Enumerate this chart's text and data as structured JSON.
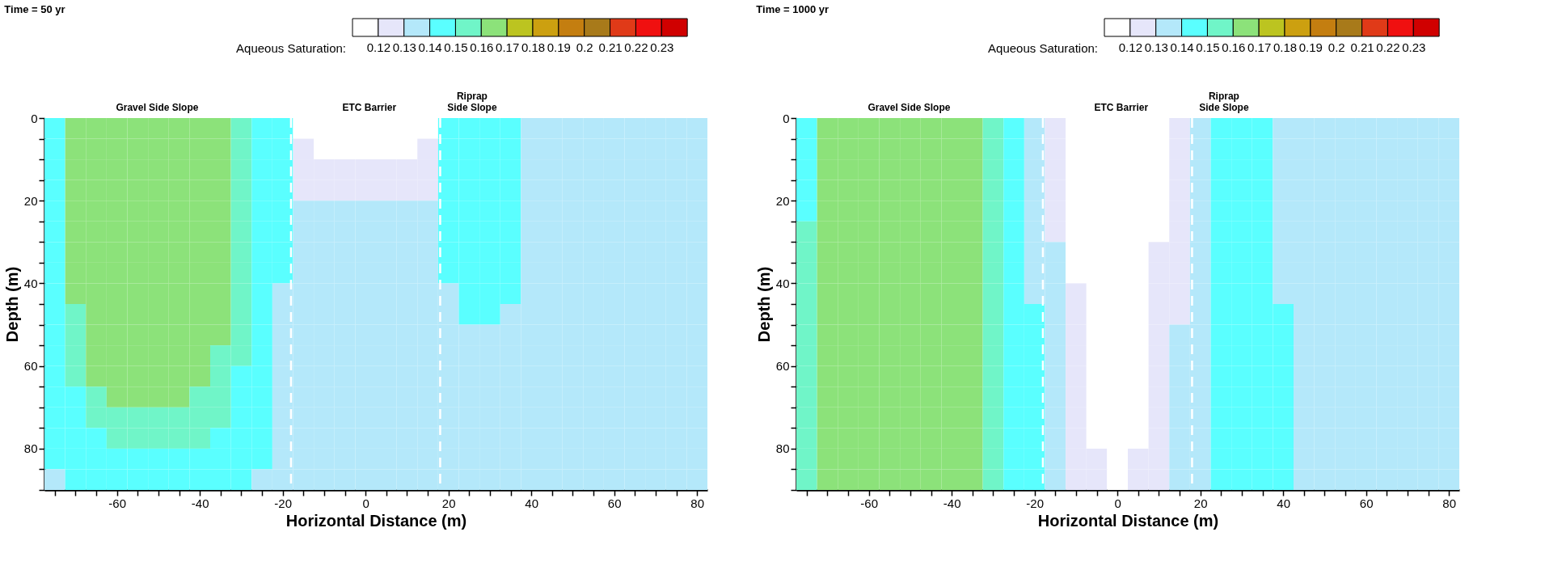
{
  "chart_data": [
    {
      "type": "heatmap",
      "title": "Time = 50 yr",
      "clabel": "Aqueous Saturation:",
      "xlabel": "Horizontal Distance (m)",
      "ylabel": "Depth (m)",
      "xlim": [
        -77.5,
        82.5
      ],
      "ylim": [
        90,
        0
      ],
      "xticks": [
        {
          "value": -75,
          "label": null
        },
        {
          "value": -70,
          "label": null
        },
        {
          "value": -65,
          "label": null
        },
        -60,
        {
          "value": -55,
          "label": null
        },
        {
          "value": -50,
          "label": null
        },
        {
          "value": -45,
          "label": null
        },
        -40,
        {
          "value": -35,
          "label": null
        },
        {
          "value": -30,
          "label": null
        },
        {
          "value": -25,
          "label": null
        },
        -20,
        {
          "value": -15,
          "label": null
        },
        {
          "value": -10,
          "label": null
        },
        {
          "value": -5,
          "label": null
        },
        0,
        {
          "value": 5,
          "label": null
        },
        {
          "value": 10,
          "label": null
        },
        {
          "value": 15,
          "label": null
        },
        20,
        {
          "value": 25,
          "label": null
        },
        {
          "value": 30,
          "label": null
        },
        {
          "value": 35,
          "label": null
        },
        40,
        {
          "value": 45,
          "label": null
        },
        {
          "value": 50,
          "label": null
        },
        {
          "value": 55,
          "label": null
        },
        60,
        {
          "value": 65,
          "label": null
        },
        {
          "value": 70,
          "label": null
        },
        {
          "value": 75,
          "label": null
        },
        80
      ],
      "yticks": [
        0,
        {
          "value": 5,
          "label": null
        },
        {
          "value": 10,
          "label": null
        },
        {
          "value": 15,
          "label": null
        },
        20,
        {
          "value": 25,
          "label": null
        },
        {
          "value": 30,
          "label": null
        },
        {
          "value": 35,
          "label": null
        },
        40,
        {
          "value": 45,
          "label": null
        },
        {
          "value": 50,
          "label": null
        },
        {
          "value": 55,
          "label": null
        },
        60,
        {
          "value": 65,
          "label": null
        },
        {
          "value": 70,
          "label": null
        },
        {
          "value": 75,
          "label": null
        },
        80,
        {
          "value": 85,
          "label": null
        },
        {
          "value": 90,
          "label": null
        }
      ],
      "clim": [
        0.11,
        0.24
      ],
      "cticks": [
        0.12,
        0.13,
        0.14,
        0.15,
        0.16,
        0.17,
        0.18,
        0.19,
        0.2,
        0.21,
        0.22,
        0.23
      ],
      "colors": [
        "#ffffff",
        "#e6e6fa",
        "#b4e8fa",
        "#5affff",
        "#70f5c8",
        "#8ce27a",
        "#bcc420",
        "#cca010",
        "#c47e10",
        "#a87a1a",
        "#e03a18",
        "#f01010",
        "#d00000"
      ],
      "grid": false,
      "ref_lines": [
        {
          "axis": "x",
          "value": -18,
          "color": "#ffffff",
          "line_style": "dashed"
        },
        {
          "axis": "x",
          "value": 18,
          "color": "#ffffff",
          "line_style": "dashed"
        }
      ],
      "annotations": [
        "Gravel Side Slope",
        "ETC Barrier",
        "Riprap\nSide Slope"
      ],
      "cells": [
        [
          0.145,
          0.165,
          0.165,
          0.165,
          0.165,
          0.165,
          0.165,
          0.165,
          0.165,
          0.155,
          0.145,
          0.145,
          0.115,
          0.115,
          0.115,
          0.115,
          0.115,
          0.115,
          0.115,
          0.145,
          0.145,
          0.145,
          0.145,
          0.135,
          0.135,
          0.135,
          0.135,
          0.135,
          0.135,
          0.135,
          0.135,
          0.135
        ],
        [
          0.145,
          0.165,
          0.165,
          0.165,
          0.165,
          0.165,
          0.165,
          0.165,
          0.165,
          0.155,
          0.145,
          0.145,
          0.125,
          0.115,
          0.115,
          0.115,
          0.115,
          0.115,
          0.125,
          0.145,
          0.145,
          0.145,
          0.145,
          0.135,
          0.135,
          0.135,
          0.135,
          0.135,
          0.135,
          0.135,
          0.135,
          0.135
        ],
        [
          0.145,
          0.165,
          0.165,
          0.165,
          0.165,
          0.165,
          0.165,
          0.165,
          0.165,
          0.155,
          0.145,
          0.145,
          0.125,
          0.125,
          0.125,
          0.125,
          0.125,
          0.125,
          0.125,
          0.145,
          0.145,
          0.145,
          0.145,
          0.135,
          0.135,
          0.135,
          0.135,
          0.135,
          0.135,
          0.135,
          0.135,
          0.135
        ],
        [
          0.145,
          0.165,
          0.165,
          0.165,
          0.165,
          0.165,
          0.165,
          0.165,
          0.165,
          0.155,
          0.145,
          0.145,
          0.125,
          0.125,
          0.125,
          0.125,
          0.125,
          0.125,
          0.125,
          0.145,
          0.145,
          0.145,
          0.145,
          0.135,
          0.135,
          0.135,
          0.135,
          0.135,
          0.135,
          0.135,
          0.135,
          0.135
        ],
        [
          0.145,
          0.165,
          0.165,
          0.165,
          0.165,
          0.165,
          0.165,
          0.165,
          0.165,
          0.155,
          0.145,
          0.145,
          0.135,
          0.135,
          0.135,
          0.135,
          0.135,
          0.135,
          0.135,
          0.145,
          0.145,
          0.145,
          0.145,
          0.135,
          0.135,
          0.135,
          0.135,
          0.135,
          0.135,
          0.135,
          0.135,
          0.135
        ],
        [
          0.145,
          0.165,
          0.165,
          0.165,
          0.165,
          0.165,
          0.165,
          0.165,
          0.165,
          0.155,
          0.145,
          0.145,
          0.135,
          0.135,
          0.135,
          0.135,
          0.135,
          0.135,
          0.135,
          0.145,
          0.145,
          0.145,
          0.145,
          0.135,
          0.135,
          0.135,
          0.135,
          0.135,
          0.135,
          0.135,
          0.135,
          0.135
        ],
        [
          0.145,
          0.165,
          0.165,
          0.165,
          0.165,
          0.165,
          0.165,
          0.165,
          0.165,
          0.155,
          0.145,
          0.145,
          0.135,
          0.135,
          0.135,
          0.135,
          0.135,
          0.135,
          0.135,
          0.145,
          0.145,
          0.145,
          0.145,
          0.135,
          0.135,
          0.135,
          0.135,
          0.135,
          0.135,
          0.135,
          0.135,
          0.135
        ],
        [
          0.145,
          0.165,
          0.165,
          0.165,
          0.165,
          0.165,
          0.165,
          0.165,
          0.165,
          0.155,
          0.145,
          0.145,
          0.135,
          0.135,
          0.135,
          0.135,
          0.135,
          0.135,
          0.135,
          0.145,
          0.145,
          0.145,
          0.145,
          0.135,
          0.135,
          0.135,
          0.135,
          0.135,
          0.135,
          0.135,
          0.135,
          0.135
        ],
        [
          0.145,
          0.165,
          0.165,
          0.165,
          0.165,
          0.165,
          0.165,
          0.165,
          0.165,
          0.155,
          0.145,
          0.135,
          0.135,
          0.135,
          0.135,
          0.135,
          0.135,
          0.135,
          0.135,
          0.135,
          0.145,
          0.145,
          0.145,
          0.135,
          0.135,
          0.135,
          0.135,
          0.135,
          0.135,
          0.135,
          0.135,
          0.135
        ],
        [
          0.145,
          0.155,
          0.165,
          0.165,
          0.165,
          0.165,
          0.165,
          0.165,
          0.165,
          0.155,
          0.145,
          0.135,
          0.135,
          0.135,
          0.135,
          0.135,
          0.135,
          0.135,
          0.135,
          0.135,
          0.145,
          0.145,
          0.135,
          0.135,
          0.135,
          0.135,
          0.135,
          0.135,
          0.135,
          0.135,
          0.135,
          0.135
        ],
        [
          0.145,
          0.155,
          0.165,
          0.165,
          0.165,
          0.165,
          0.165,
          0.165,
          0.165,
          0.155,
          0.145,
          0.135,
          0.135,
          0.135,
          0.135,
          0.135,
          0.135,
          0.135,
          0.135,
          0.135,
          0.135,
          0.135,
          0.135,
          0.135,
          0.135,
          0.135,
          0.135,
          0.135,
          0.135,
          0.135,
          0.135,
          0.135
        ],
        [
          0.145,
          0.155,
          0.165,
          0.165,
          0.165,
          0.165,
          0.165,
          0.165,
          0.155,
          0.155,
          0.145,
          0.135,
          0.135,
          0.135,
          0.135,
          0.135,
          0.135,
          0.135,
          0.135,
          0.135,
          0.135,
          0.135,
          0.135,
          0.135,
          0.135,
          0.135,
          0.135,
          0.135,
          0.135,
          0.135,
          0.135,
          0.135
        ],
        [
          0.145,
          0.155,
          0.165,
          0.165,
          0.165,
          0.165,
          0.165,
          0.165,
          0.155,
          0.145,
          0.145,
          0.135,
          0.135,
          0.135,
          0.135,
          0.135,
          0.135,
          0.135,
          0.135,
          0.135,
          0.135,
          0.135,
          0.135,
          0.135,
          0.135,
          0.135,
          0.135,
          0.135,
          0.135,
          0.135,
          0.135,
          0.135
        ],
        [
          0.145,
          0.145,
          0.155,
          0.165,
          0.165,
          0.165,
          0.165,
          0.155,
          0.155,
          0.145,
          0.145,
          0.135,
          0.135,
          0.135,
          0.135,
          0.135,
          0.135,
          0.135,
          0.135,
          0.135,
          0.135,
          0.135,
          0.135,
          0.135,
          0.135,
          0.135,
          0.135,
          0.135,
          0.135,
          0.135,
          0.135,
          0.135
        ],
        [
          0.145,
          0.145,
          0.155,
          0.155,
          0.155,
          0.155,
          0.155,
          0.155,
          0.155,
          0.145,
          0.145,
          0.135,
          0.135,
          0.135,
          0.135,
          0.135,
          0.135,
          0.135,
          0.135,
          0.135,
          0.135,
          0.135,
          0.135,
          0.135,
          0.135,
          0.135,
          0.135,
          0.135,
          0.135,
          0.135,
          0.135,
          0.135
        ],
        [
          0.145,
          0.145,
          0.145,
          0.155,
          0.155,
          0.155,
          0.155,
          0.155,
          0.145,
          0.145,
          0.145,
          0.135,
          0.135,
          0.135,
          0.135,
          0.135,
          0.135,
          0.135,
          0.135,
          0.135,
          0.135,
          0.135,
          0.135,
          0.135,
          0.135,
          0.135,
          0.135,
          0.135,
          0.135,
          0.135,
          0.135,
          0.135
        ],
        [
          0.145,
          0.145,
          0.145,
          0.145,
          0.145,
          0.145,
          0.145,
          0.145,
          0.145,
          0.145,
          0.145,
          0.135,
          0.135,
          0.135,
          0.135,
          0.135,
          0.135,
          0.135,
          0.135,
          0.135,
          0.135,
          0.135,
          0.135,
          0.135,
          0.135,
          0.135,
          0.135,
          0.135,
          0.135,
          0.135,
          0.135,
          0.135
        ],
        [
          0.135,
          0.145,
          0.145,
          0.145,
          0.145,
          0.145,
          0.145,
          0.145,
          0.145,
          0.145,
          0.135,
          0.135,
          0.135,
          0.135,
          0.135,
          0.135,
          0.135,
          0.135,
          0.135,
          0.135,
          0.135,
          0.135,
          0.135,
          0.135,
          0.135,
          0.135,
          0.135,
          0.135,
          0.135,
          0.135,
          0.135,
          0.135
        ]
      ]
    },
    {
      "type": "heatmap",
      "title": "Time = 1000 yr",
      "clabel": "Aqueous Saturation:",
      "xlabel": "Horizontal Distance (m)",
      "ylabel": "Depth (m)",
      "xlim": [
        -77.5,
        82.5
      ],
      "ylim": [
        90,
        0
      ],
      "xticks": [
        {
          "value": -75,
          "label": null
        },
        {
          "value": -70,
          "label": null
        },
        {
          "value": -65,
          "label": null
        },
        -60,
        {
          "value": -55,
          "label": null
        },
        {
          "value": -50,
          "label": null
        },
        {
          "value": -45,
          "label": null
        },
        -40,
        {
          "value": -35,
          "label": null
        },
        {
          "value": -30,
          "label": null
        },
        {
          "value": -25,
          "label": null
        },
        -20,
        {
          "value": -15,
          "label": null
        },
        {
          "value": -10,
          "label": null
        },
        {
          "value": -5,
          "label": null
        },
        0,
        {
          "value": 5,
          "label": null
        },
        {
          "value": 10,
          "label": null
        },
        {
          "value": 15,
          "label": null
        },
        20,
        {
          "value": 25,
          "label": null
        },
        {
          "value": 30,
          "label": null
        },
        {
          "value": 35,
          "label": null
        },
        40,
        {
          "value": 45,
          "label": null
        },
        {
          "value": 50,
          "label": null
        },
        {
          "value": 55,
          "label": null
        },
        60,
        {
          "value": 65,
          "label": null
        },
        {
          "value": 70,
          "label": null
        },
        {
          "value": 75,
          "label": null
        },
        80
      ],
      "yticks": [
        0,
        {
          "value": 5,
          "label": null
        },
        {
          "value": 10,
          "label": null
        },
        {
          "value": 15,
          "label": null
        },
        20,
        {
          "value": 25,
          "label": null
        },
        {
          "value": 30,
          "label": null
        },
        {
          "value": 35,
          "label": null
        },
        40,
        {
          "value": 45,
          "label": null
        },
        {
          "value": 50,
          "label": null
        },
        {
          "value": 55,
          "label": null
        },
        60,
        {
          "value": 65,
          "label": null
        },
        {
          "value": 70,
          "label": null
        },
        {
          "value": 75,
          "label": null
        },
        80,
        {
          "value": 85,
          "label": null
        },
        {
          "value": 90,
          "label": null
        }
      ],
      "clim": [
        0.11,
        0.24
      ],
      "cticks": [
        0.12,
        0.13,
        0.14,
        0.15,
        0.16,
        0.17,
        0.18,
        0.19,
        0.2,
        0.21,
        0.22,
        0.23
      ],
      "colors": [
        "#ffffff",
        "#e6e6fa",
        "#b4e8fa",
        "#5affff",
        "#70f5c8",
        "#8ce27a",
        "#bcc420",
        "#cca010",
        "#c47e10",
        "#a87a1a",
        "#e03a18",
        "#f01010",
        "#d00000"
      ],
      "grid": false,
      "ref_lines": [
        {
          "axis": "x",
          "value": -18,
          "color": "#ffffff",
          "line_style": "dashed"
        },
        {
          "axis": "x",
          "value": 18,
          "color": "#ffffff",
          "line_style": "dashed"
        }
      ],
      "annotations": [
        "Gravel Side Slope",
        "ETC Barrier",
        "Riprap\nSide Slope"
      ],
      "cells": [
        [
          0.145,
          0.165,
          0.165,
          0.165,
          0.165,
          0.165,
          0.165,
          0.165,
          0.165,
          0.155,
          0.145,
          0.135,
          0.125,
          0.115,
          0.115,
          0.115,
          0.115,
          0.115,
          0.125,
          0.135,
          0.145,
          0.145,
          0.145,
          0.135,
          0.135,
          0.135,
          0.135,
          0.135,
          0.135,
          0.135,
          0.135,
          0.135
        ],
        [
          0.145,
          0.165,
          0.165,
          0.165,
          0.165,
          0.165,
          0.165,
          0.165,
          0.165,
          0.155,
          0.145,
          0.135,
          0.125,
          0.115,
          0.115,
          0.115,
          0.115,
          0.115,
          0.125,
          0.135,
          0.145,
          0.145,
          0.145,
          0.135,
          0.135,
          0.135,
          0.135,
          0.135,
          0.135,
          0.135,
          0.135,
          0.135
        ],
        [
          0.145,
          0.165,
          0.165,
          0.165,
          0.165,
          0.165,
          0.165,
          0.165,
          0.165,
          0.155,
          0.145,
          0.135,
          0.125,
          0.115,
          0.115,
          0.115,
          0.115,
          0.115,
          0.125,
          0.135,
          0.145,
          0.145,
          0.145,
          0.135,
          0.135,
          0.135,
          0.135,
          0.135,
          0.135,
          0.135,
          0.135,
          0.135
        ],
        [
          0.145,
          0.165,
          0.165,
          0.165,
          0.165,
          0.165,
          0.165,
          0.165,
          0.165,
          0.155,
          0.145,
          0.135,
          0.125,
          0.115,
          0.115,
          0.115,
          0.115,
          0.115,
          0.125,
          0.135,
          0.145,
          0.145,
          0.145,
          0.135,
          0.135,
          0.135,
          0.135,
          0.135,
          0.135,
          0.135,
          0.135,
          0.135
        ],
        [
          0.145,
          0.165,
          0.165,
          0.165,
          0.165,
          0.165,
          0.165,
          0.165,
          0.165,
          0.155,
          0.145,
          0.135,
          0.125,
          0.115,
          0.115,
          0.115,
          0.115,
          0.115,
          0.125,
          0.135,
          0.145,
          0.145,
          0.145,
          0.135,
          0.135,
          0.135,
          0.135,
          0.135,
          0.135,
          0.135,
          0.135,
          0.135
        ],
        [
          0.155,
          0.165,
          0.165,
          0.165,
          0.165,
          0.165,
          0.165,
          0.165,
          0.165,
          0.155,
          0.145,
          0.135,
          0.125,
          0.115,
          0.115,
          0.115,
          0.115,
          0.115,
          0.125,
          0.135,
          0.145,
          0.145,
          0.145,
          0.135,
          0.135,
          0.135,
          0.135,
          0.135,
          0.135,
          0.135,
          0.135,
          0.135
        ],
        [
          0.155,
          0.165,
          0.165,
          0.165,
          0.165,
          0.165,
          0.165,
          0.165,
          0.165,
          0.155,
          0.145,
          0.135,
          0.135,
          0.115,
          0.115,
          0.115,
          0.115,
          0.125,
          0.125,
          0.135,
          0.145,
          0.145,
          0.145,
          0.135,
          0.135,
          0.135,
          0.135,
          0.135,
          0.135,
          0.135,
          0.135,
          0.135
        ],
        [
          0.155,
          0.165,
          0.165,
          0.165,
          0.165,
          0.165,
          0.165,
          0.165,
          0.165,
          0.155,
          0.145,
          0.135,
          0.135,
          0.115,
          0.115,
          0.115,
          0.115,
          0.125,
          0.125,
          0.135,
          0.145,
          0.145,
          0.145,
          0.135,
          0.135,
          0.135,
          0.135,
          0.135,
          0.135,
          0.135,
          0.135,
          0.135
        ],
        [
          0.155,
          0.165,
          0.165,
          0.165,
          0.165,
          0.165,
          0.165,
          0.165,
          0.165,
          0.155,
          0.145,
          0.135,
          0.135,
          0.125,
          0.115,
          0.115,
          0.115,
          0.125,
          0.125,
          0.135,
          0.145,
          0.145,
          0.145,
          0.135,
          0.135,
          0.135,
          0.135,
          0.135,
          0.135,
          0.135,
          0.135,
          0.135
        ],
        [
          0.155,
          0.165,
          0.165,
          0.165,
          0.165,
          0.165,
          0.165,
          0.165,
          0.165,
          0.155,
          0.145,
          0.145,
          0.135,
          0.125,
          0.115,
          0.115,
          0.115,
          0.125,
          0.125,
          0.135,
          0.145,
          0.145,
          0.145,
          0.145,
          0.135,
          0.135,
          0.135,
          0.135,
          0.135,
          0.135,
          0.135,
          0.135
        ],
        [
          0.155,
          0.165,
          0.165,
          0.165,
          0.165,
          0.165,
          0.165,
          0.165,
          0.165,
          0.155,
          0.145,
          0.145,
          0.135,
          0.125,
          0.115,
          0.115,
          0.115,
          0.125,
          0.135,
          0.135,
          0.145,
          0.145,
          0.145,
          0.145,
          0.135,
          0.135,
          0.135,
          0.135,
          0.135,
          0.135,
          0.135,
          0.135
        ],
        [
          0.155,
          0.165,
          0.165,
          0.165,
          0.165,
          0.165,
          0.165,
          0.165,
          0.165,
          0.155,
          0.145,
          0.145,
          0.135,
          0.125,
          0.115,
          0.115,
          0.115,
          0.125,
          0.135,
          0.135,
          0.145,
          0.145,
          0.145,
          0.145,
          0.135,
          0.135,
          0.135,
          0.135,
          0.135,
          0.135,
          0.135,
          0.135
        ],
        [
          0.155,
          0.165,
          0.165,
          0.165,
          0.165,
          0.165,
          0.165,
          0.165,
          0.165,
          0.155,
          0.145,
          0.145,
          0.135,
          0.125,
          0.115,
          0.115,
          0.115,
          0.125,
          0.135,
          0.135,
          0.145,
          0.145,
          0.145,
          0.145,
          0.135,
          0.135,
          0.135,
          0.135,
          0.135,
          0.135,
          0.135,
          0.135
        ],
        [
          0.155,
          0.165,
          0.165,
          0.165,
          0.165,
          0.165,
          0.165,
          0.165,
          0.165,
          0.155,
          0.145,
          0.145,
          0.135,
          0.125,
          0.115,
          0.115,
          0.115,
          0.125,
          0.135,
          0.135,
          0.145,
          0.145,
          0.145,
          0.145,
          0.135,
          0.135,
          0.135,
          0.135,
          0.135,
          0.135,
          0.135,
          0.135
        ],
        [
          0.155,
          0.165,
          0.165,
          0.165,
          0.165,
          0.165,
          0.165,
          0.165,
          0.165,
          0.155,
          0.145,
          0.145,
          0.135,
          0.125,
          0.115,
          0.115,
          0.115,
          0.125,
          0.135,
          0.135,
          0.145,
          0.145,
          0.145,
          0.145,
          0.135,
          0.135,
          0.135,
          0.135,
          0.135,
          0.135,
          0.135,
          0.135
        ],
        [
          0.155,
          0.165,
          0.165,
          0.165,
          0.165,
          0.165,
          0.165,
          0.165,
          0.165,
          0.155,
          0.145,
          0.145,
          0.135,
          0.125,
          0.115,
          0.115,
          0.115,
          0.125,
          0.135,
          0.135,
          0.145,
          0.145,
          0.145,
          0.145,
          0.135,
          0.135,
          0.135,
          0.135,
          0.135,
          0.135,
          0.135,
          0.135
        ],
        [
          0.155,
          0.165,
          0.165,
          0.165,
          0.165,
          0.165,
          0.165,
          0.165,
          0.165,
          0.155,
          0.145,
          0.145,
          0.135,
          0.125,
          0.125,
          0.115,
          0.125,
          0.125,
          0.135,
          0.135,
          0.145,
          0.145,
          0.145,
          0.145,
          0.135,
          0.135,
          0.135,
          0.135,
          0.135,
          0.135,
          0.135,
          0.135
        ],
        [
          0.155,
          0.165,
          0.165,
          0.165,
          0.165,
          0.165,
          0.165,
          0.165,
          0.165,
          0.155,
          0.145,
          0.145,
          0.135,
          0.125,
          0.125,
          0.115,
          0.125,
          0.125,
          0.135,
          0.135,
          0.145,
          0.145,
          0.145,
          0.145,
          0.135,
          0.135,
          0.135,
          0.135,
          0.135,
          0.135,
          0.135,
          0.135
        ]
      ]
    }
  ]
}
